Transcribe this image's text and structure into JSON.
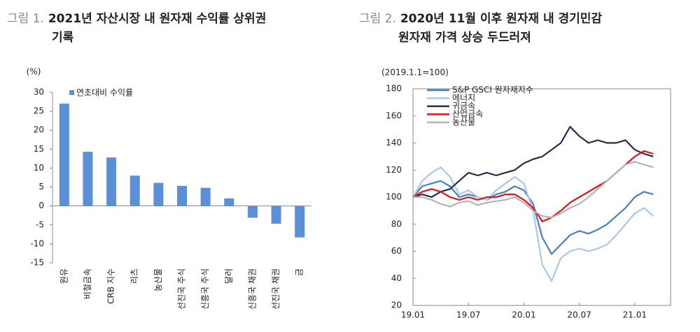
{
  "chart_data": [
    {
      "type": "bar",
      "figure_label": "그림 1.",
      "title": [
        "2021년 자산시장 내 원자재 수익률 상위권",
        "기록"
      ],
      "y_label": "(%)",
      "categories": [
        "원유",
        "비철금속",
        "CRB 지수",
        "리츠",
        "농산물",
        "선진국 주식",
        "신흥국 주식",
        "달러",
        "신흥국 채권",
        "선진국 채권",
        "금"
      ],
      "series": [
        {
          "name": "연초대비 수익률",
          "color": "#5b8fd6",
          "values": [
            27,
            14.3,
            12.8,
            8,
            6.1,
            5.3,
            4.8,
            2,
            -3.1,
            -4.7,
            -8.3
          ]
        }
      ],
      "ylim": [
        -15,
        30
      ],
      "yticks": [
        -15,
        -10,
        -5,
        0,
        5,
        10,
        15,
        20,
        25,
        30
      ],
      "legend": "top-left"
    },
    {
      "type": "line",
      "figure_label": "그림 2.",
      "title": [
        "2020년 11월 이후 원자재 내 경기민감",
        "원자재 가격 상승 두드러져"
      ],
      "subtitle": "(2019.1.1=100)",
      "x": [
        "19.01",
        null,
        null,
        null,
        null,
        null,
        "19.07",
        null,
        null,
        null,
        null,
        null,
        "20.01",
        null,
        null,
        null,
        null,
        null,
        "20.07",
        null,
        null,
        null,
        null,
        null,
        "21.01",
        null,
        null
      ],
      "series": [
        {
          "name": "S&P GSCI 원자재지수",
          "color": "#4a7fc8",
          "values": [
            100,
            108,
            110,
            112,
            108,
            100,
            102,
            100,
            98,
            102,
            104,
            108,
            105,
            95,
            70,
            58,
            65,
            72,
            75,
            73,
            76,
            80,
            86,
            92,
            100,
            104,
            102
          ]
        },
        {
          "name": "에너지",
          "color": "#a9c8ec",
          "values": [
            100,
            112,
            118,
            122,
            115,
            102,
            105,
            100,
            98,
            105,
            110,
            115,
            110,
            90,
            50,
            38,
            55,
            60,
            62,
            60,
            62,
            65,
            72,
            80,
            88,
            92,
            86
          ]
        },
        {
          "name": "귀금속",
          "color": "#1f3047",
          "values": [
            100,
            102,
            100,
            104,
            106,
            112,
            118,
            116,
            118,
            116,
            118,
            120,
            125,
            128,
            130,
            135,
            140,
            152,
            145,
            140,
            142,
            140,
            140,
            142,
            135,
            132,
            130
          ]
        },
        {
          "name": "산업금속",
          "color": "#e8101a",
          "values": [
            100,
            104,
            106,
            104,
            100,
            98,
            100,
            98,
            100,
            100,
            102,
            102,
            98,
            92,
            82,
            85,
            90,
            96,
            100,
            104,
            108,
            112,
            118,
            124,
            130,
            134,
            132
          ]
        },
        {
          "name": "농산물",
          "color": "#b4b4b4",
          "values": [
            100,
            100,
            98,
            95,
            93,
            96,
            97,
            94,
            96,
            97,
            98,
            100,
            96,
            90,
            86,
            85,
            88,
            92,
            95,
            100,
            106,
            112,
            118,
            124,
            126,
            124,
            122
          ]
        }
      ],
      "ylim": [
        20,
        180
      ],
      "yticks": [
        20,
        40,
        60,
        80,
        100,
        120,
        140,
        160,
        180
      ],
      "legend": "top-left"
    }
  ]
}
